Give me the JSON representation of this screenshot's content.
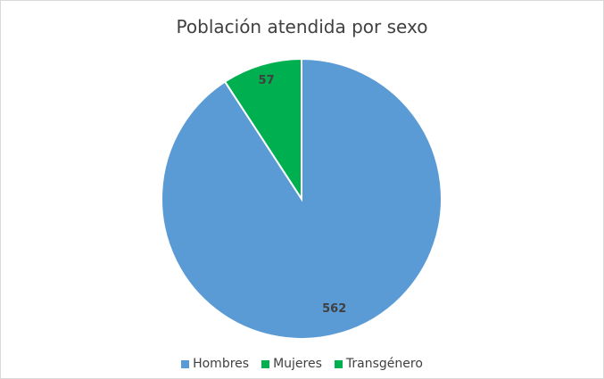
{
  "chart_data": {
    "type": "pie",
    "title": "Población atendida por sexo",
    "categories": [
      "Hombres",
      "Mujeres",
      "Transgénero"
    ],
    "values": [
      562,
      0,
      57
    ],
    "data_labels": [
      "562",
      "",
      "57"
    ],
    "colors": [
      "#5b9bd5",
      "#00b050",
      "#00b050"
    ],
    "legend_position": "bottom"
  }
}
